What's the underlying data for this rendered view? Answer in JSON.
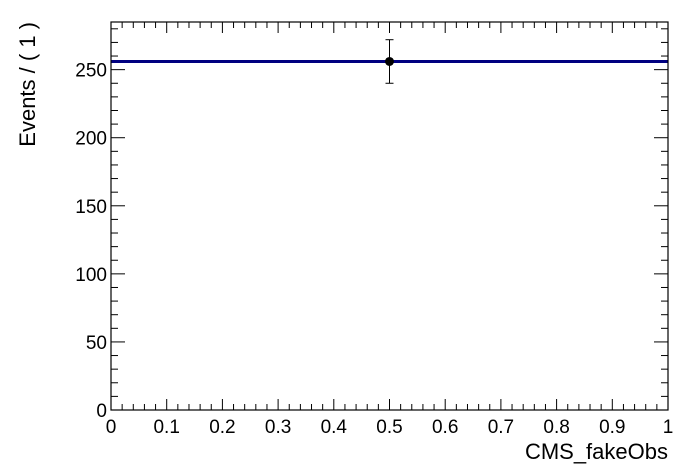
{
  "chart_data": {
    "type": "scatter",
    "xlabel": "CMS_fakeObs",
    "ylabel": "Events / ( 1 )",
    "xlim": [
      0,
      1
    ],
    "ylim": [
      0,
      285
    ],
    "x_ticks": [
      "0",
      "0.1",
      "0.2",
      "0.3",
      "0.4",
      "0.5",
      "0.6",
      "0.7",
      "0.8",
      "0.9",
      "1"
    ],
    "y_ticks": [
      "0",
      "50",
      "100",
      "150",
      "200",
      "250"
    ],
    "grid": false,
    "points": [
      {
        "x": 0.5,
        "y": 256,
        "yerr_low": 16,
        "yerr_high": 16
      }
    ],
    "fit_line": {
      "y": 256,
      "color": "#000080"
    }
  }
}
